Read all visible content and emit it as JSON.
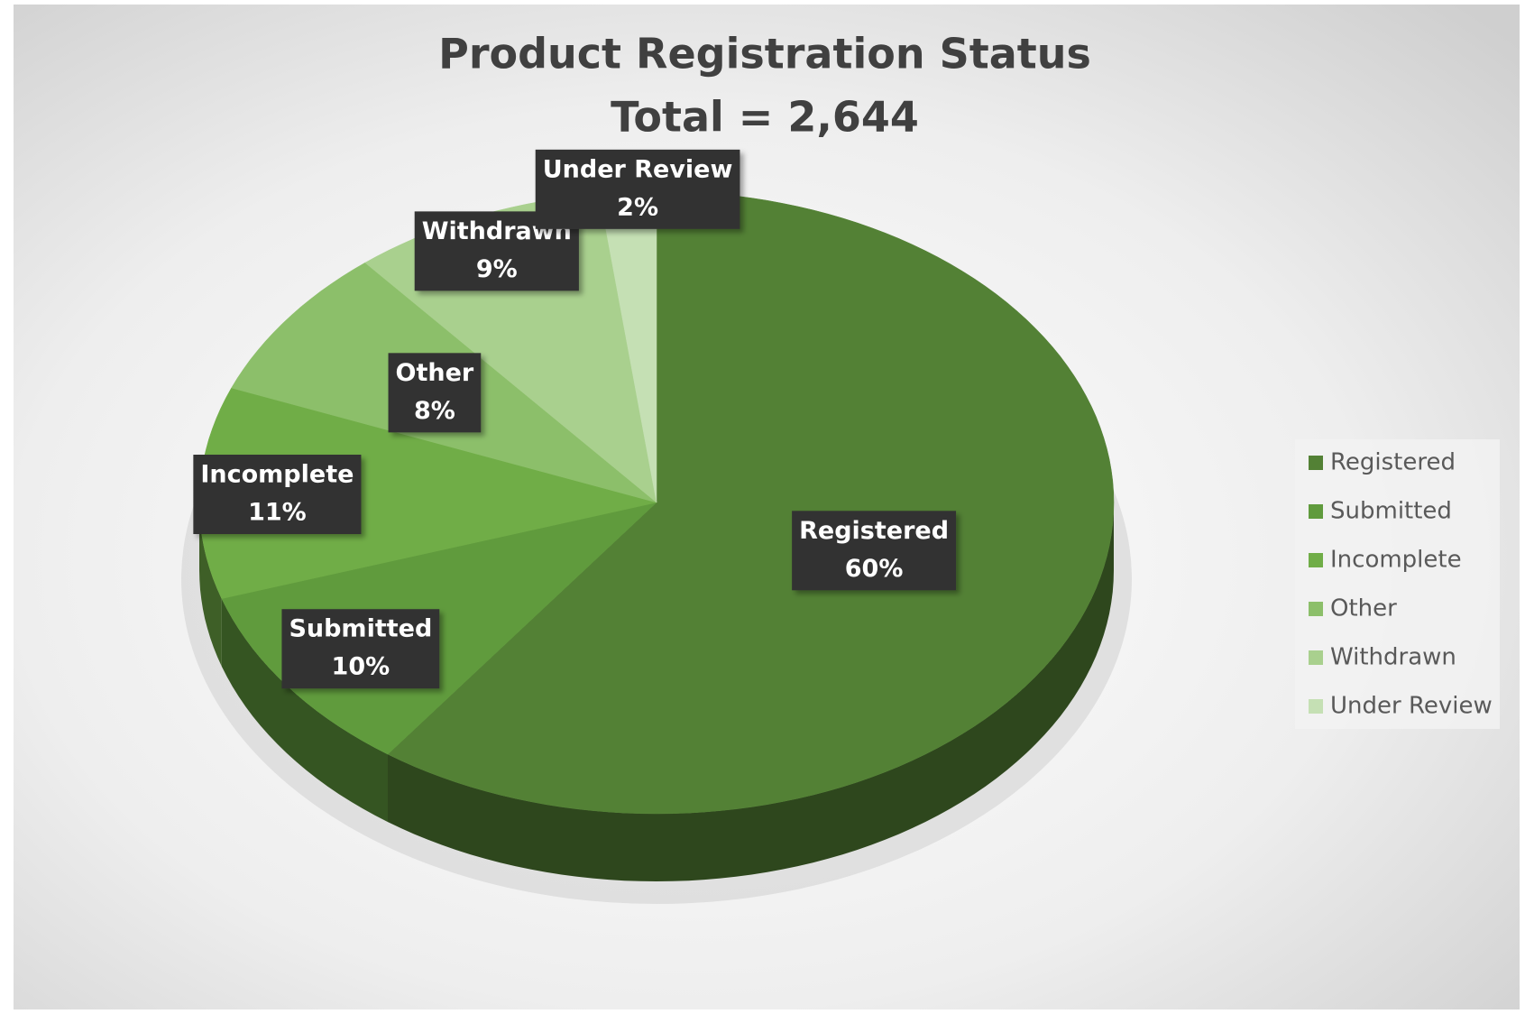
{
  "chart_data": {
    "type": "pie",
    "title": "Product Registration Status",
    "subtitle": "Total = 2,644",
    "categories": [
      "Registered",
      "Submitted",
      "Incomplete",
      "Other",
      "Withdrawn",
      "Under Review"
    ],
    "values": [
      60,
      10,
      11,
      8,
      9,
      2
    ],
    "value_labels": [
      "60%",
      "10%",
      "11%",
      "8%",
      "9%",
      "2%"
    ],
    "colors": [
      "#538135",
      "#609b3d",
      "#70ad47",
      "#8cbf6a",
      "#a9d08e",
      "#c5e0b4"
    ],
    "legend": "right"
  }
}
